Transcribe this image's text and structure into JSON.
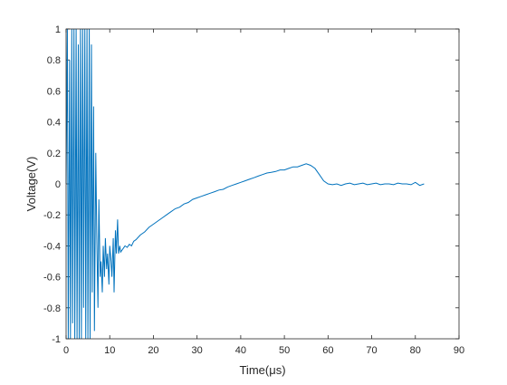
{
  "chart_data": {
    "type": "line",
    "xlabel": "Time(μs)",
    "ylabel": "Voltage(V)",
    "xlim": [
      0,
      90
    ],
    "ylim": [
      -1,
      1
    ],
    "xticks": [
      0,
      10,
      20,
      30,
      40,
      50,
      60,
      70,
      80,
      90
    ],
    "yticks": [
      -1,
      -0.8,
      -0.6,
      -0.4,
      -0.2,
      0,
      0.2,
      0.4,
      0.6,
      0.8,
      1
    ],
    "xtick_labels": [
      "0",
      "10",
      "20",
      "30",
      "40",
      "50",
      "60",
      "70",
      "80",
      "90"
    ],
    "ytick_labels": [
      "-1",
      "-0.8",
      "-0.6",
      "-0.4",
      "-0.2",
      "0",
      "0.2",
      "0.4",
      "0.6",
      "0.8",
      "1"
    ],
    "grid": false,
    "legend": "none",
    "line_color": "#0072BD",
    "series": [
      {
        "x": [
          0.0,
          0.3,
          0.5,
          0.8,
          1.0,
          1.3,
          1.5,
          1.8,
          2.0,
          2.3,
          2.5,
          2.8,
          3.0,
          3.3,
          3.5,
          3.8,
          4.0,
          4.3,
          4.5,
          4.8,
          5.0,
          5.3,
          5.5,
          5.8,
          6.0,
          6.3,
          6.5,
          6.8,
          7.0,
          7.3,
          7.5,
          7.8,
          8.0,
          8.3,
          8.5,
          8.8,
          9.0,
          9.3,
          9.5,
          9.8,
          10.0,
          10.3,
          10.5,
          10.8,
          11.0,
          11.3,
          11.5,
          11.8,
          12.0,
          12.3,
          12.5,
          13.0,
          13.5,
          14.0,
          14.5,
          15.0,
          15.5,
          16.0,
          17.0,
          18.0,
          19.0,
          20.0,
          21.0,
          22.0,
          23.0,
          24.0,
          25.0,
          26.0,
          27.0,
          28.0,
          29.0,
          30.0,
          31.0,
          32.0,
          33.0,
          34.0,
          35.0,
          36.0,
          37.0,
          38.0,
          39.0,
          40.0,
          41.0,
          42.0,
          43.0,
          44.0,
          45.0,
          46.0,
          47.0,
          48.0,
          49.0,
          50.0,
          51.0,
          52.0,
          53.0,
          54.0,
          55.0,
          56.0,
          57.0,
          58.0,
          59.0,
          60.0,
          61.0,
          62.0,
          63.0,
          64.0,
          65.0,
          66.0,
          67.0,
          68.0,
          69.0,
          70.0,
          71.0,
          72.0,
          73.0,
          74.0,
          75.0,
          76.0,
          77.0,
          78.0,
          79.0,
          80.0,
          81.0,
          82.0
        ],
        "y": [
          0.0,
          1.0,
          -1.0,
          0.8,
          -1.0,
          1.0,
          -0.9,
          1.0,
          -1.0,
          1.0,
          -1.0,
          0.9,
          -1.0,
          1.0,
          -1.0,
          1.0,
          -0.8,
          1.0,
          -1.0,
          1.0,
          -1.0,
          1.0,
          -1.0,
          0.9,
          -0.7,
          0.5,
          -0.95,
          0.2,
          -0.3,
          -0.8,
          -0.1,
          -0.6,
          -0.5,
          -0.7,
          -0.4,
          -0.6,
          -0.35,
          -0.55,
          -0.45,
          -0.65,
          -0.4,
          -0.5,
          -0.6,
          -0.35,
          -0.7,
          -0.3,
          -0.45,
          -0.23,
          -0.45,
          -0.4,
          -0.44,
          -0.42,
          -0.4,
          -0.41,
          -0.39,
          -0.4,
          -0.37,
          -0.36,
          -0.33,
          -0.31,
          -0.28,
          -0.26,
          -0.24,
          -0.22,
          -0.2,
          -0.18,
          -0.16,
          -0.15,
          -0.13,
          -0.12,
          -0.1,
          -0.09,
          -0.08,
          -0.07,
          -0.06,
          -0.05,
          -0.04,
          -0.035,
          -0.02,
          -0.01,
          0.0,
          0.01,
          0.02,
          0.03,
          0.04,
          0.05,
          0.06,
          0.07,
          0.075,
          0.08,
          0.09,
          0.09,
          0.1,
          0.11,
          0.11,
          0.12,
          0.13,
          0.12,
          0.1,
          0.06,
          0.02,
          0.0,
          -0.005,
          0.0,
          -0.01,
          0.0,
          0.005,
          -0.005,
          0.0,
          0.005,
          -0.005,
          0.0,
          0.005,
          -0.005,
          0.0,
          0.0,
          -0.005,
          0.005,
          0.0,
          0.0,
          -0.005,
          0.01,
          -0.01,
          0.0
        ]
      }
    ]
  }
}
